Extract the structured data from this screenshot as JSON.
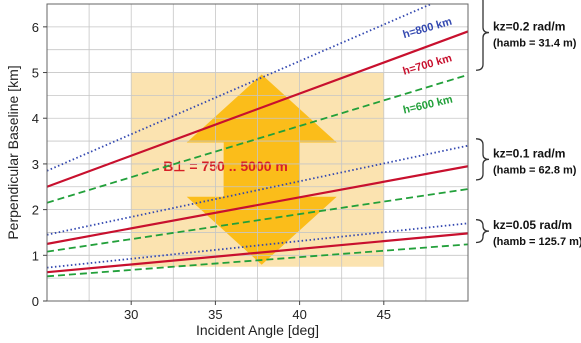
{
  "chart_data": {
    "type": "line",
    "xlabel": "Incident Angle [deg]",
    "ylabel": "Perpendicular Baseline [km]",
    "xlim": [
      25,
      50
    ],
    "ylim": [
      0,
      6.5
    ],
    "xticks": [
      30,
      35,
      40,
      45
    ],
    "yticks": [
      0,
      1,
      2,
      3,
      4,
      5,
      6
    ],
    "grid": true,
    "x": [
      25,
      50
    ],
    "series": [
      {
        "name": "h=800 km",
        "group": "kz=0.2",
        "color": "#3348b0",
        "dash": "dotted",
        "values": [
          2.85,
          6.85
        ]
      },
      {
        "name": "h=700 km",
        "group": "kz=0.2",
        "color": "#c8102e",
        "dash": "solid",
        "values": [
          2.5,
          5.9
        ]
      },
      {
        "name": "h=600 km",
        "group": "kz=0.2",
        "color": "#22a03a",
        "dash": "dashed",
        "values": [
          2.15,
          4.95
        ]
      },
      {
        "name": "",
        "group": "kz=0.1",
        "color": "#3348b0",
        "dash": "dotted",
        "values": [
          1.45,
          3.4
        ]
      },
      {
        "name": "",
        "group": "kz=0.1",
        "color": "#c8102e",
        "dash": "solid",
        "values": [
          1.25,
          2.95
        ]
      },
      {
        "name": "",
        "group": "kz=0.1",
        "color": "#22a03a",
        "dash": "dashed",
        "values": [
          1.08,
          2.45
        ]
      },
      {
        "name": "",
        "group": "kz=0.05",
        "color": "#3348b0",
        "dash": "dotted",
        "values": [
          0.73,
          1.7
        ]
      },
      {
        "name": "",
        "group": "kz=0.05",
        "color": "#c8102e",
        "dash": "solid",
        "values": [
          0.63,
          1.48
        ]
      },
      {
        "name": "",
        "group": "kz=0.05",
        "color": "#22a03a",
        "dash": "dashed",
        "values": [
          0.54,
          1.24
        ]
      }
    ],
    "series_labels": [
      {
        "text": "h=800 km",
        "series": 0,
        "x": 46.2,
        "y": 5.75,
        "angle": -16
      },
      {
        "text": "h=700 km",
        "series": 1,
        "x": 46.2,
        "y": 4.95,
        "angle": -16
      },
      {
        "text": "h=600 km",
        "series": 2,
        "x": 46.2,
        "y": 4.1,
        "angle": -13
      }
    ],
    "region": {
      "label": "B⊥ = 750 .. 5000 m",
      "x_range": [
        30,
        45
      ],
      "y_range": [
        0.75,
        5.0
      ],
      "fill": "#fbe3b0",
      "arrow_color": "#fbbd1a",
      "label_color": "#d61f26"
    },
    "annotations": [
      {
        "line1": "kz=0.2 rad/m",
        "line2": "(hamb = 31.4 m)",
        "y_range": [
          5.05,
          6.7
        ]
      },
      {
        "line1": "kz=0.1 rad/m",
        "line2": "(hamb = 62.8 m)",
        "y_range": [
          2.65,
          3.55
        ]
      },
      {
        "line1": "kz=0.05 rad/m",
        "line2": "(hamb = 125.7 m)",
        "y_range": [
          1.28,
          1.78
        ]
      }
    ]
  }
}
